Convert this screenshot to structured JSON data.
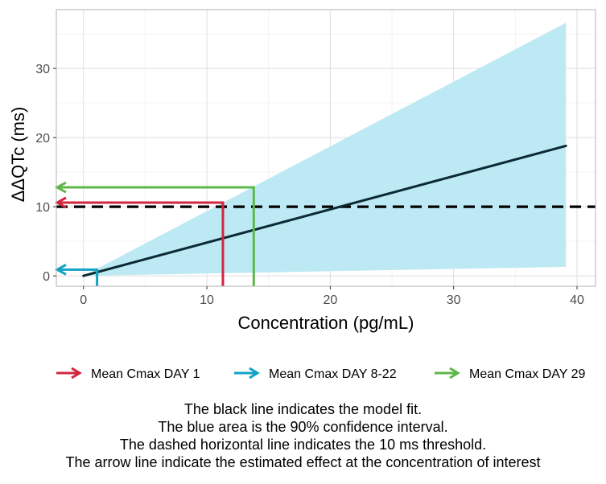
{
  "chart_data": {
    "type": "line",
    "xlabel": "Concentration (pg/mL)",
    "ylabel": "ΔΔQTc (ms)",
    "xlim": [
      -2.2,
      41.5
    ],
    "ylim": [
      -1.5,
      38.5
    ],
    "x_ticks": [
      0,
      10,
      20,
      30,
      40
    ],
    "y_ticks": [
      0,
      10,
      20,
      30
    ],
    "grid": true,
    "model_fit": {
      "name": "Model fit",
      "x": [
        0,
        39.1
      ],
      "y": [
        0,
        18.8
      ],
      "color": "#0b2a33"
    },
    "confidence_interval": {
      "name": "90% confidence interval",
      "x": [
        0,
        39.1
      ],
      "lower": [
        0,
        1.3
      ],
      "upper": [
        0,
        36.6
      ],
      "color": "#bde9f4"
    },
    "threshold": {
      "y": 10,
      "style": "dashed",
      "color": "#000000"
    },
    "arrows": [
      {
        "name": "Mean Cmax DAY 1",
        "x": 11.3,
        "y": 10.6,
        "color": "#d2263f"
      },
      {
        "name": "Mean Cmax DAY 8-22",
        "x": 1.1,
        "y": 0.9,
        "color": "#12a2c4"
      },
      {
        "name": "Mean Cmax DAY 29",
        "x": 13.8,
        "y": 12.8,
        "color": "#5cb84a"
      }
    ],
    "legend_position": "bottom"
  },
  "caption": {
    "line1": "The black line indicates the model fit.",
    "line2": "The blue area is the 90% confidence interval.",
    "line3": "The dashed horizontal line indicates the 10 ms threshold.",
    "line4": "The arrow line indicate the estimated effect at the concentration of interest"
  }
}
